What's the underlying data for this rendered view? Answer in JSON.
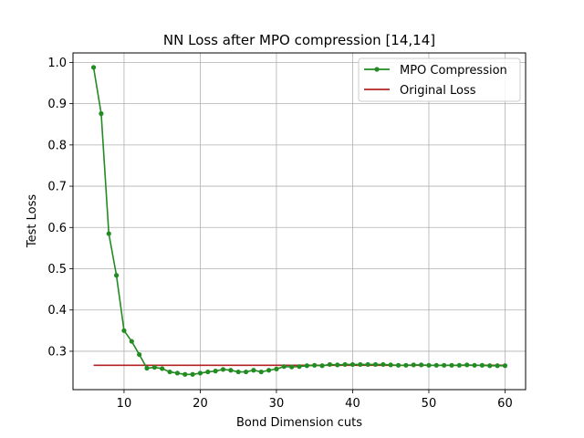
{
  "chart_data": {
    "type": "line",
    "title": "NN Loss after MPO compression [14,14]",
    "xlabel": "Bond Dimension cuts",
    "ylabel": "Test Loss",
    "xlim": [
      3.3,
      62.7
    ],
    "ylim": [
      0.207,
      1.023
    ],
    "xticks": [
      10,
      20,
      30,
      40,
      50,
      60
    ],
    "yticks": [
      0.3,
      0.4,
      0.5,
      0.6,
      0.7,
      0.8,
      0.9,
      1.0
    ],
    "ytick_labels": [
      "0.3",
      "0.4",
      "0.5",
      "0.6",
      "0.7",
      "0.8",
      "0.9",
      "1.0"
    ],
    "grid": true,
    "legend_position": "top-right",
    "series": [
      {
        "name": "MPO Compression",
        "color": "#228b22",
        "marker": "circle",
        "x": [
          6,
          7,
          8,
          9,
          10,
          11,
          12,
          13,
          14,
          15,
          16,
          17,
          18,
          19,
          20,
          21,
          22,
          23,
          24,
          25,
          26,
          27,
          28,
          29,
          30,
          31,
          32,
          33,
          34,
          35,
          36,
          37,
          38,
          39,
          40,
          41,
          42,
          43,
          44,
          45,
          46,
          47,
          48,
          49,
          50,
          51,
          52,
          53,
          54,
          55,
          56,
          57,
          58,
          59,
          60
        ],
        "values": [
          0.988,
          0.876,
          0.585,
          0.484,
          0.35,
          0.324,
          0.292,
          0.259,
          0.261,
          0.258,
          0.25,
          0.247,
          0.244,
          0.244,
          0.247,
          0.25,
          0.252,
          0.256,
          0.254,
          0.25,
          0.25,
          0.254,
          0.25,
          0.254,
          0.257,
          0.263,
          0.262,
          0.263,
          0.265,
          0.266,
          0.265,
          0.268,
          0.267,
          0.268,
          0.268,
          0.268,
          0.268,
          0.268,
          0.268,
          0.267,
          0.266,
          0.266,
          0.267,
          0.267,
          0.266,
          0.266,
          0.266,
          0.266,
          0.266,
          0.267,
          0.266,
          0.266,
          0.265,
          0.265,
          0.265
        ]
      },
      {
        "name": "Original Loss",
        "color": "#b22222",
        "marker": "none",
        "x": [
          6,
          60
        ],
        "values": [
          0.266,
          0.266
        ]
      }
    ]
  }
}
